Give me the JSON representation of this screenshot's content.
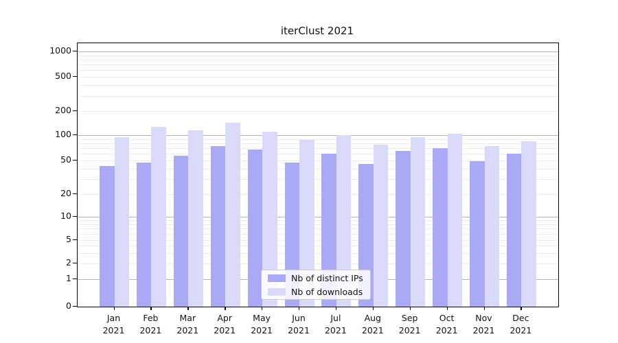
{
  "title": "iterClust 2021",
  "chart_data": {
    "type": "bar",
    "title": "iterClust 2021",
    "categories": [
      "Jan",
      "Feb",
      "Mar",
      "Apr",
      "May",
      "Jun",
      "Jul",
      "Aug",
      "Sep",
      "Oct",
      "Nov",
      "Dec"
    ],
    "category_year": "2021",
    "series": [
      {
        "name": "Nb of distinct IPs",
        "color": "#a9a9f5",
        "values": [
          43,
          47,
          57,
          74,
          67,
          47,
          60,
          45,
          65,
          70,
          49,
          60
        ]
      },
      {
        "name": "Nb of downloads",
        "color": "#d9d9f9",
        "values": [
          95,
          127,
          115,
          144,
          110,
          87,
          100,
          76,
          94,
          105,
          74,
          85
        ]
      }
    ],
    "yscale": "symlog",
    "ylim": [
      0,
      1250
    ],
    "y_ticks": [
      0,
      1,
      2,
      5,
      10,
      20,
      50,
      100,
      200,
      500,
      1000
    ],
    "major_gridlines": [
      1,
      10,
      100,
      1000
    ],
    "minor_gridlines": [
      2,
      3,
      4,
      5,
      6,
      7,
      8,
      9,
      20,
      30,
      40,
      50,
      60,
      70,
      80,
      90,
      200,
      300,
      400,
      500,
      600,
      700,
      800,
      900
    ],
    "grid": true,
    "legend_position": "lower center",
    "xlabel": "",
    "ylabel": ""
  },
  "legend": {
    "items": [
      {
        "label": "Nb of distinct IPs",
        "color": "#a9a9f5"
      },
      {
        "label": "Nb of downloads",
        "color": "#d9d9f9"
      }
    ]
  }
}
